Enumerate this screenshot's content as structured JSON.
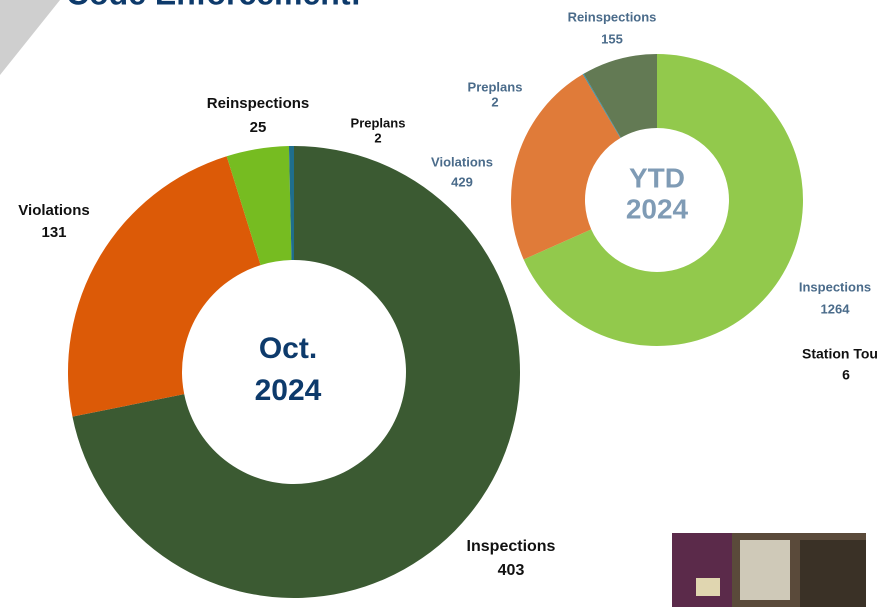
{
  "title": "Code Enforcement:",
  "chart_data": [
    {
      "type": "donut",
      "center_labels": [
        "Oct.",
        "2024"
      ],
      "categories": [
        "Inspections",
        "Violations",
        "Reinspections",
        "Preplans"
      ],
      "values": [
        403,
        131,
        25,
        2
      ],
      "colors": [
        "#3b5a32",
        "#dc5a07",
        "#76bc21",
        "#1f6e8c"
      ]
    },
    {
      "type": "donut",
      "center_labels": [
        "YTD",
        "2024"
      ],
      "categories": [
        "Inspections",
        "Violations",
        "Preplans",
        "Reinspections"
      ],
      "values": [
        1264,
        429,
        2,
        155
      ],
      "colors": [
        "#92c94c",
        "#e07b39",
        "#2e8fb0",
        "#637a54"
      ]
    }
  ],
  "extra": {
    "label": "Station Tou",
    "value": 6
  }
}
